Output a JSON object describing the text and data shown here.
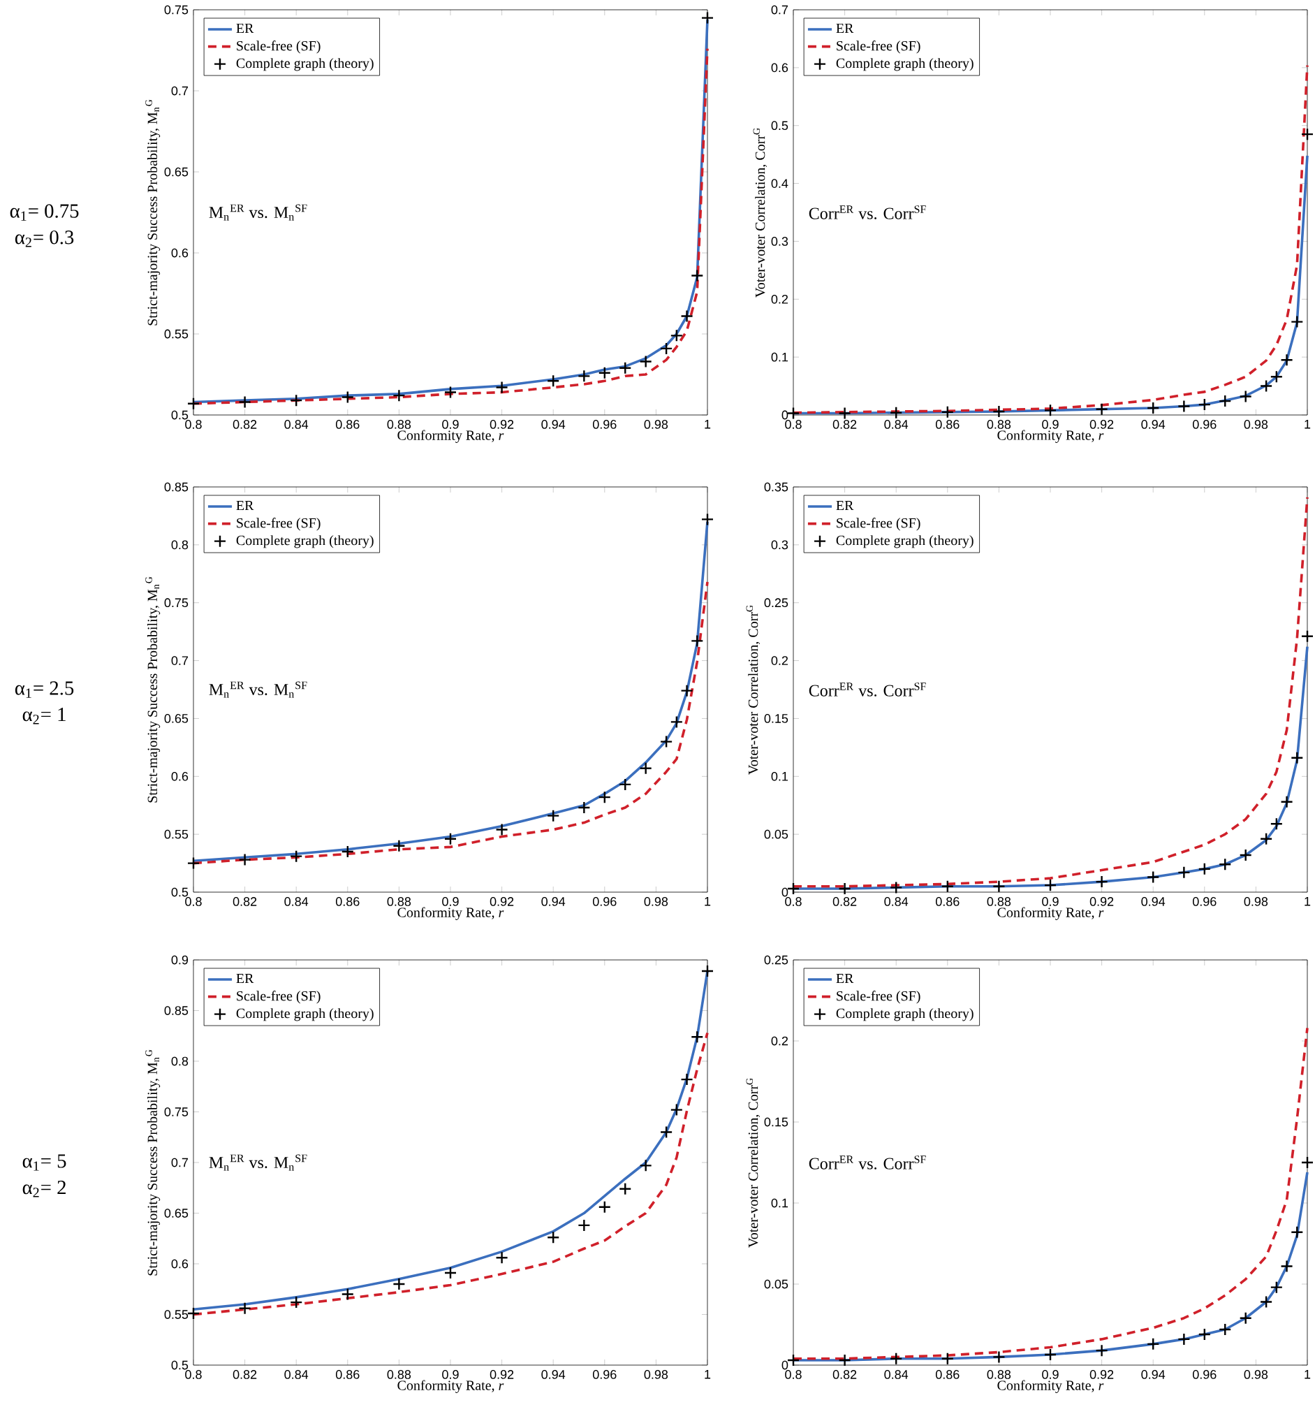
{
  "chart_data": [
    {
      "type": "line",
      "xlabel": "Conformity Rate, *r*",
      "ylabel": "Strict-majority Success Probability, M$_{n}$$^{G}$",
      "legend": "top left",
      "x": [
        0.8,
        0.82,
        0.84,
        0.86,
        0.88,
        0.9,
        0.92,
        0.94,
        0.952,
        0.96,
        0.968,
        0.976,
        0.984,
        0.988,
        0.992,
        0.996,
        1.0
      ],
      "xlim": [
        0.8,
        1
      ],
      "xticks": [
        0.8,
        0.82,
        0.84,
        0.86,
        0.88,
        0.9,
        0.92,
        0.94,
        0.96,
        0.98,
        1
      ],
      "ylim": [
        0.5,
        0.75
      ],
      "yticks": [
        0.5,
        0.55,
        0.6,
        0.65,
        0.7,
        0.75
      ],
      "annotations": [
        "α$_{1}$= 0.75",
        "α$_{2}$= 0.3",
        "M$_{n}$$^{ER}$ vs. M$_{n}$$^{SF}$"
      ],
      "series": [
        {
          "name": "ER",
          "color": "#3b6fbe",
          "line_style": "solid",
          "values": [
            0.508,
            0.509,
            0.51,
            0.512,
            0.513,
            0.516,
            0.518,
            0.522,
            0.525,
            0.528,
            0.53,
            0.535,
            0.543,
            0.55,
            0.561,
            0.585,
            0.744
          ]
        },
        {
          "name": "Scale-free (SF)",
          "color": "#d0202a",
          "line_style": "dashed",
          "values": [
            0.507,
            0.508,
            0.509,
            0.51,
            0.511,
            0.513,
            0.514,
            0.517,
            0.519,
            0.521,
            0.524,
            0.525,
            0.534,
            0.542,
            0.552,
            0.576,
            0.726
          ]
        },
        {
          "name": "Complete graph (theory)",
          "type": "scatter",
          "marker": "cross",
          "color": "#000000",
          "values": [
            0.507,
            0.508,
            0.509,
            0.511,
            0.512,
            0.514,
            0.517,
            0.521,
            0.524,
            0.526,
            0.529,
            0.533,
            0.541,
            0.549,
            0.561,
            0.586,
            0.745
          ]
        }
      ]
    },
    {
      "type": "line",
      "xlabel": "Conformity Rate, *r*",
      "ylabel": "Voter-voter Correlation, Corr$^{G}$",
      "legend": "top left",
      "x": [
        0.8,
        0.82,
        0.84,
        0.86,
        0.88,
        0.9,
        0.92,
        0.94,
        0.952,
        0.96,
        0.968,
        0.976,
        0.984,
        0.988,
        0.992,
        0.996,
        1.0
      ],
      "xlim": [
        0.8,
        1
      ],
      "xticks": [
        0.8,
        0.82,
        0.84,
        0.86,
        0.88,
        0.9,
        0.92,
        0.94,
        0.96,
        0.98,
        1
      ],
      "ylim": [
        0,
        0.7
      ],
      "yticks": [
        0,
        0.1,
        0.2,
        0.3,
        0.4,
        0.5,
        0.6,
        0.7
      ],
      "annotations": [
        "Corr$^{ER}$ vs. Corr$^{SF}$"
      ],
      "series": [
        {
          "name": "ER",
          "color": "#3b6fbe",
          "line_style": "solid",
          "values": [
            0.003,
            0.003,
            0.004,
            0.005,
            0.006,
            0.008,
            0.01,
            0.012,
            0.015,
            0.018,
            0.025,
            0.033,
            0.051,
            0.066,
            0.094,
            0.16,
            0.448
          ]
        },
        {
          "name": "Scale-free (SF)",
          "color": "#d0202a",
          "line_style": "dashed",
          "values": [
            0.004,
            0.005,
            0.006,
            0.007,
            0.009,
            0.011,
            0.017,
            0.026,
            0.035,
            0.04,
            0.052,
            0.066,
            0.094,
            0.121,
            0.165,
            0.259,
            0.604
          ]
        },
        {
          "name": "Complete graph (theory)",
          "type": "scatter",
          "marker": "cross",
          "color": "#000000",
          "values": [
            0.003,
            0.003,
            0.004,
            0.005,
            0.006,
            0.008,
            0.01,
            0.012,
            0.015,
            0.018,
            0.024,
            0.032,
            0.05,
            0.066,
            0.095,
            0.161,
            0.485
          ]
        }
      ]
    },
    {
      "type": "line",
      "xlabel": "Conformity Rate, *r*",
      "ylabel": "Strict-majority Success Probability, M$_{n}$$^{G}$",
      "legend": "top left",
      "x": [
        0.8,
        0.82,
        0.84,
        0.86,
        0.88,
        0.9,
        0.92,
        0.94,
        0.952,
        0.96,
        0.968,
        0.976,
        0.984,
        0.988,
        0.992,
        0.996,
        1.0
      ],
      "xlim": [
        0.8,
        1
      ],
      "xticks": [
        0.8,
        0.82,
        0.84,
        0.86,
        0.88,
        0.9,
        0.92,
        0.94,
        0.96,
        0.98,
        1
      ],
      "ylim": [
        0.5,
        0.85
      ],
      "yticks": [
        0.5,
        0.55,
        0.6,
        0.65,
        0.7,
        0.75,
        0.8,
        0.85
      ],
      "annotations": [
        "α$_{1}$= 2.5",
        "α$_{2}$= 1",
        "M$_{n}$$^{ER}$ vs. M$_{n}$$^{SF}$"
      ],
      "series": [
        {
          "name": "ER",
          "color": "#3b6fbe",
          "line_style": "solid",
          "values": [
            0.527,
            0.53,
            0.533,
            0.537,
            0.542,
            0.548,
            0.557,
            0.568,
            0.575,
            0.585,
            0.596,
            0.612,
            0.631,
            0.646,
            0.673,
            0.715,
            0.82
          ]
        },
        {
          "name": "Scale-free (SF)",
          "color": "#d0202a",
          "line_style": "dashed",
          "values": [
            0.525,
            0.528,
            0.53,
            0.533,
            0.537,
            0.539,
            0.548,
            0.554,
            0.56,
            0.567,
            0.573,
            0.585,
            0.604,
            0.615,
            0.649,
            0.699,
            0.768
          ]
        },
        {
          "name": "Complete graph (theory)",
          "type": "scatter",
          "marker": "cross",
          "color": "#000000",
          "values": [
            0.525,
            0.528,
            0.531,
            0.535,
            0.54,
            0.546,
            0.554,
            0.566,
            0.573,
            0.582,
            0.593,
            0.607,
            0.63,
            0.647,
            0.674,
            0.717,
            0.822
          ]
        }
      ]
    },
    {
      "type": "line",
      "xlabel": "Conformity Rate, *r*",
      "ylabel": "Voter-voter Correlation, Corr$^{G}$",
      "legend": "top left",
      "x": [
        0.8,
        0.82,
        0.84,
        0.86,
        0.88,
        0.9,
        0.92,
        0.94,
        0.952,
        0.96,
        0.968,
        0.976,
        0.984,
        0.988,
        0.992,
        0.996,
        1.0
      ],
      "xlim": [
        0.8,
        1
      ],
      "xticks": [
        0.8,
        0.82,
        0.84,
        0.86,
        0.88,
        0.9,
        0.92,
        0.94,
        0.96,
        0.98,
        1
      ],
      "ylim": [
        0,
        0.35
      ],
      "yticks": [
        0,
        0.05,
        0.1,
        0.15,
        0.2,
        0.25,
        0.3,
        0.35
      ],
      "annotations": [
        "Corr$^{ER}$ vs. Corr$^{SF}$"
      ],
      "series": [
        {
          "name": "ER",
          "color": "#3b6fbe",
          "line_style": "solid",
          "values": [
            0.003,
            0.003,
            0.004,
            0.005,
            0.005,
            0.006,
            0.009,
            0.013,
            0.017,
            0.02,
            0.024,
            0.032,
            0.045,
            0.057,
            0.077,
            0.114,
            0.212
          ]
        },
        {
          "name": "Scale-free (SF)",
          "color": "#d0202a",
          "line_style": "dashed",
          "values": [
            0.005,
            0.005,
            0.006,
            0.007,
            0.009,
            0.012,
            0.019,
            0.026,
            0.035,
            0.041,
            0.05,
            0.063,
            0.085,
            0.104,
            0.14,
            0.219,
            0.341
          ]
        },
        {
          "name": "Complete graph (theory)",
          "type": "scatter",
          "marker": "cross",
          "color": "#000000",
          "values": [
            0.003,
            0.003,
            0.004,
            0.005,
            0.005,
            0.006,
            0.009,
            0.013,
            0.017,
            0.02,
            0.024,
            0.032,
            0.046,
            0.059,
            0.078,
            0.116,
            0.221
          ]
        }
      ]
    },
    {
      "type": "line",
      "xlabel": "Conformity Rate, *r*",
      "ylabel": "Strict-majority Success Probability, M$_{n}$$^{G}$",
      "legend": "top left",
      "x": [
        0.8,
        0.82,
        0.84,
        0.86,
        0.88,
        0.9,
        0.92,
        0.94,
        0.952,
        0.96,
        0.968,
        0.976,
        0.984,
        0.988,
        0.992,
        0.996,
        1.0
      ],
      "xlim": [
        0.8,
        1
      ],
      "xticks": [
        0.8,
        0.82,
        0.84,
        0.86,
        0.88,
        0.9,
        0.92,
        0.94,
        0.96,
        0.98,
        1
      ],
      "ylim": [
        0.5,
        0.9
      ],
      "yticks": [
        0.5,
        0.55,
        0.6,
        0.65,
        0.7,
        0.75,
        0.8,
        0.85,
        0.9
      ],
      "annotations": [
        "α$_{1}$= 5",
        "α$_{2}$= 2",
        "M$_{n}$$^{ER}$ vs. M$_{n}$$^{SF}$"
      ],
      "series": [
        {
          "name": "ER",
          "color": "#3b6fbe",
          "line_style": "solid",
          "values": [
            0.555,
            0.56,
            0.567,
            0.575,
            0.585,
            0.596,
            0.612,
            0.632,
            0.65,
            0.667,
            0.684,
            0.7,
            0.73,
            0.753,
            0.783,
            0.824,
            0.889
          ]
        },
        {
          "name": "Scale-free (SF)",
          "color": "#d0202a",
          "line_style": "dashed",
          "values": [
            0.55,
            0.555,
            0.56,
            0.566,
            0.572,
            0.579,
            0.59,
            0.602,
            0.615,
            0.623,
            0.637,
            0.65,
            0.678,
            0.705,
            0.751,
            0.792,
            0.828
          ]
        },
        {
          "name": "Complete graph (theory)",
          "type": "scatter",
          "marker": "cross",
          "color": "#000000",
          "values": [
            0.551,
            0.556,
            0.562,
            0.57,
            0.58,
            0.591,
            0.606,
            0.626,
            0.638,
            0.656,
            0.674,
            0.697,
            0.73,
            0.752,
            0.782,
            0.824,
            0.889
          ]
        }
      ]
    },
    {
      "type": "line",
      "xlabel": "Conformity Rate, *r*",
      "ylabel": "Voter-voter Correlation, Corr$^{G}$",
      "legend": "top left",
      "x": [
        0.8,
        0.82,
        0.84,
        0.86,
        0.88,
        0.9,
        0.92,
        0.94,
        0.952,
        0.96,
        0.968,
        0.976,
        0.984,
        0.988,
        0.992,
        0.996,
        1.0
      ],
      "xlim": [
        0.8,
        1
      ],
      "xticks": [
        0.8,
        0.82,
        0.84,
        0.86,
        0.88,
        0.9,
        0.92,
        0.94,
        0.96,
        0.98,
        1
      ],
      "ylim": [
        0,
        0.25
      ],
      "yticks": [
        0,
        0.05,
        0.1,
        0.15,
        0.2,
        0.25
      ],
      "annotations": [
        "Corr$^{ER}$ vs. Corr$^{SF}$"
      ],
      "series": [
        {
          "name": "ER",
          "color": "#3b6fbe",
          "line_style": "solid",
          "values": [
            0.003,
            0.003,
            0.004,
            0.004,
            0.005,
            0.0065,
            0.009,
            0.013,
            0.016,
            0.019,
            0.022,
            0.029,
            0.039,
            0.048,
            0.061,
            0.08,
            0.119
          ]
        },
        {
          "name": "Scale-free (SF)",
          "color": "#d0202a",
          "line_style": "dashed",
          "values": [
            0.004,
            0.004,
            0.005,
            0.006,
            0.008,
            0.011,
            0.016,
            0.023,
            0.029,
            0.035,
            0.043,
            0.053,
            0.067,
            0.083,
            0.102,
            0.152,
            0.208
          ]
        },
        {
          "name": "Complete graph (theory)",
          "type": "scatter",
          "marker": "cross",
          "color": "#000000",
          "values": [
            0.003,
            0.003,
            0.004,
            0.004,
            0.005,
            0.0065,
            0.009,
            0.013,
            0.016,
            0.019,
            0.022,
            0.029,
            0.039,
            0.048,
            0.061,
            0.082,
            0.125
          ]
        }
      ]
    }
  ]
}
